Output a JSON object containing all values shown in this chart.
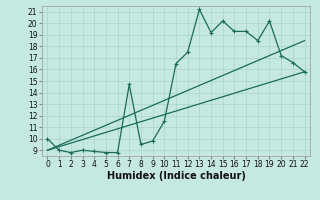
{
  "xlabel": "Humidex (Indice chaleur)",
  "xlim": [
    -0.5,
    22.5
  ],
  "ylim": [
    8.5,
    21.5
  ],
  "xticks": [
    0,
    1,
    2,
    3,
    4,
    5,
    6,
    7,
    8,
    9,
    10,
    11,
    12,
    13,
    14,
    15,
    16,
    17,
    18,
    19,
    20,
    21,
    22
  ],
  "yticks": [
    9,
    10,
    11,
    12,
    13,
    14,
    15,
    16,
    17,
    18,
    19,
    20,
    21
  ],
  "bg_color": "#c5e8e0",
  "grid_color": "#aad4ca",
  "line_color": "#1a6b5a",
  "line1_x": [
    0,
    1,
    2,
    3,
    4,
    5,
    6,
    7,
    8,
    9,
    10,
    11,
    12,
    13,
    14,
    15,
    16,
    17,
    18,
    19,
    20,
    21,
    22
  ],
  "line1_y": [
    10.0,
    9.0,
    8.8,
    9.0,
    8.9,
    8.8,
    8.8,
    14.7,
    9.5,
    9.8,
    11.5,
    16.5,
    17.5,
    21.2,
    19.2,
    20.2,
    19.3,
    19.3,
    18.5,
    20.2,
    17.2,
    16.6,
    15.8
  ],
  "line2_x": [
    0,
    22
  ],
  "line2_y": [
    9.0,
    18.5
  ],
  "line3_x": [
    0,
    22
  ],
  "line3_y": [
    9.0,
    15.8
  ],
  "tick_fontsize": 5.5,
  "label_fontsize": 7
}
